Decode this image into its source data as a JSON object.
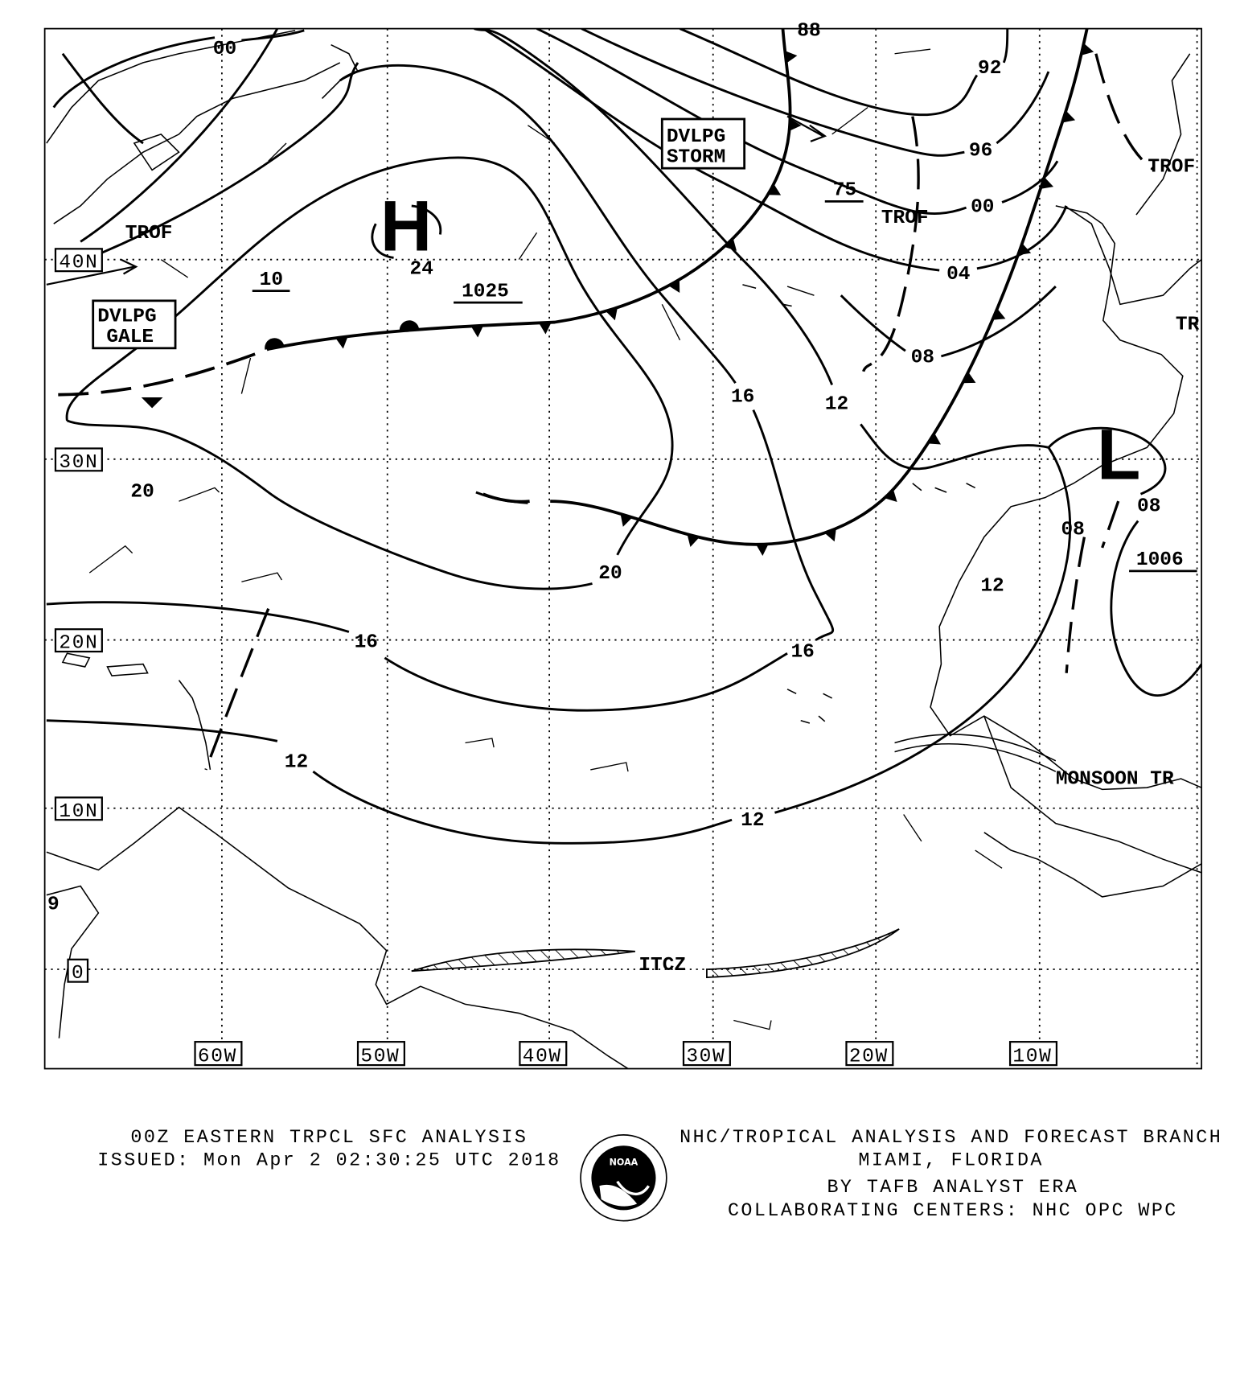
{
  "map": {
    "lat_labels": [
      "40N",
      "30N",
      "20N",
      "10N",
      "0"
    ],
    "lon_labels": [
      "60W",
      "50W",
      "40W",
      "30W",
      "20W",
      "10W"
    ],
    "edge_label": "9",
    "high": {
      "symbol": "H",
      "pressure": "1025",
      "center_isobar": "24"
    },
    "low": {
      "symbol": "L",
      "pressure": "1006"
    },
    "warnings": [
      {
        "lines": [
          "DVLPG",
          "GALE"
        ]
      },
      {
        "lines": [
          "DVLPG",
          "STORM"
        ]
      }
    ],
    "isobar_labels": [
      "00",
      "10",
      "75",
      "92",
      "96",
      "00",
      "04",
      "08",
      "16",
      "12",
      "20",
      "08",
      "08",
      "12",
      "20",
      "16",
      "16",
      "12",
      "12",
      "88"
    ],
    "features": [
      "TROF",
      "TROF",
      "TROF",
      "TR",
      "MONSOON TR",
      "ITCZ"
    ],
    "colors": {
      "ink": "#000000",
      "background": "#ffffff"
    }
  },
  "footer": {
    "title": "00Z EASTERN TRPCL SFC ANALYSIS",
    "issued": "ISSUED: Mon Apr 2 02:30:25 UTC 2018",
    "center": "NHC/TROPICAL ANALYSIS AND FORECAST BRANCH",
    "location": "MIAMI,  FLORIDA",
    "analyst": "BY TAFB ANALYST  ERA",
    "collaborating": "COLLABORATING CENTERS: NHC OPC WPC",
    "logo": "NOAA"
  }
}
